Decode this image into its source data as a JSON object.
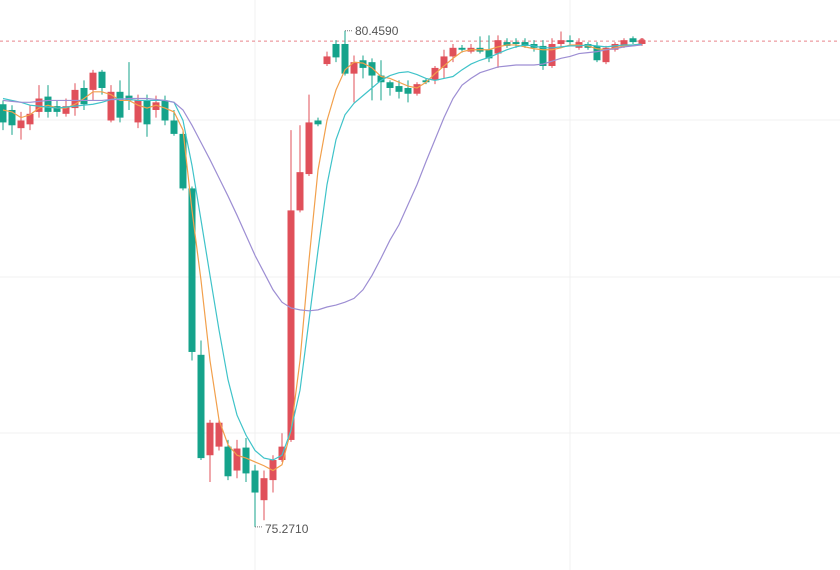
{
  "chart_data": {
    "type": "candlestick",
    "ylim": [
      74.82,
      80.78
    ],
    "up_color": "#e0505a",
    "down_color": "#15a38b",
    "open": [
      79.69,
      79.63,
      79.44,
      79.48,
      79.61,
      79.77,
      79.67,
      79.59,
      79.65,
      79.86,
      79.84,
      80.03,
      79.52,
      79.82,
      79.78,
      79.5,
      79.73,
      79.63,
      79.73,
      79.52,
      79.38,
      78.81,
      77.07,
      76.02,
      76.11,
      76.11,
      75.86,
      76.1,
      75.86,
      75.55,
      75.76,
      75.97,
      76.18,
      78.58,
      78.96,
      79.52,
      80.11,
      80.32,
      80.32,
      80.01,
      80.15,
      80.13,
      79.99,
      79.92,
      79.88,
      79.86,
      79.8,
      79.94,
      79.94,
      80.07,
      80.19,
      80.28,
      80.24,
      80.28,
      80.26,
      80.22,
      80.34,
      80.34,
      80.34,
      80.32,
      80.3,
      80.09,
      80.32,
      80.36,
      80.28,
      80.32,
      80.3,
      80.13,
      80.26,
      80.3,
      80.38,
      80.32
    ],
    "high": [
      79.73,
      79.68,
      79.61,
      79.68,
      79.89,
      79.89,
      79.73,
      79.75,
      79.91,
      79.94,
      80.05,
      80.05,
      79.89,
      79.94,
      80.13,
      79.79,
      79.79,
      79.78,
      79.78,
      79.63,
      79.42,
      78.83,
      77.22,
      76.39,
      76.39,
      76.18,
      76.18,
      76.2,
      75.92,
      75.86,
      76.02,
      76.25,
      79.42,
      79.47,
      79.79,
      79.55,
      80.24,
      80.36,
      80.459,
      80.2,
      80.2,
      80.17,
      80.15,
      79.94,
      79.94,
      79.94,
      79.92,
      79.96,
      80.09,
      80.26,
      80.32,
      80.31,
      80.32,
      80.4,
      80.41,
      80.41,
      80.38,
      80.38,
      80.38,
      80.36,
      80.36,
      80.38,
      80.45,
      80.41,
      80.38,
      80.34,
      80.34,
      80.3,
      80.34,
      80.38,
      80.4,
      80.38
    ],
    "low": [
      79.42,
      79.37,
      79.32,
      79.42,
      79.55,
      79.55,
      79.56,
      79.56,
      79.57,
      79.63,
      79.73,
      79.79,
      79.5,
      79.5,
      79.63,
      79.44,
      79.35,
      79.55,
      79.47,
      79.36,
      78.79,
      77.01,
      75.97,
      75.74,
      76.07,
      75.76,
      75.78,
      75.74,
      75.271,
      75.34,
      75.63,
      75.95,
      76.16,
      78.56,
      78.94,
      79.46,
      80.09,
      80.13,
      79.99,
      79.71,
      79.96,
      79.73,
      79.73,
      79.78,
      79.75,
      79.71,
      79.78,
      79.9,
      79.9,
      79.96,
      80.13,
      80.23,
      80.22,
      80.22,
      80.13,
      80.07,
      80.28,
      80.28,
      80.28,
      80.24,
      80.05,
      80.07,
      80.28,
      80.3,
      80.26,
      80.26,
      80.13,
      80.11,
      80.24,
      80.28,
      80.32,
      80.3
    ],
    "close": [
      79.5,
      79.47,
      79.52,
      79.59,
      79.75,
      79.61,
      79.61,
      79.67,
      79.84,
      79.69,
      80.02,
      79.86,
      79.82,
      79.55,
      79.73,
      79.73,
      79.48,
      79.71,
      79.52,
      79.38,
      78.81,
      77.1,
      75.99,
      76.36,
      76.36,
      75.8,
      76.09,
      75.83,
      75.63,
      75.78,
      75.97,
      76.11,
      78.58,
      78.98,
      79.5,
      79.48,
      80.19,
      80.18,
      80.01,
      80.13,
      80.07,
      79.99,
      79.92,
      79.86,
      79.82,
      79.8,
      79.9,
      79.92,
      80.07,
      80.19,
      80.28,
      80.26,
      80.28,
      80.24,
      80.17,
      80.36,
      80.3,
      80.32,
      80.3,
      80.28,
      80.09,
      80.32,
      80.36,
      80.34,
      80.34,
      80.28,
      80.15,
      80.28,
      80.32,
      80.36,
      80.34,
      80.36
    ],
    "lines": [
      {
        "color": "#f2a04c",
        "values": [
          79.63,
          79.61,
          79.55,
          79.58,
          79.65,
          79.68,
          79.65,
          79.65,
          79.69,
          79.75,
          79.82,
          79.82,
          79.79,
          79.73,
          79.73,
          79.68,
          79.65,
          79.68,
          79.65,
          79.61,
          79.42,
          78.58,
          77.85,
          77.01,
          76.39,
          76.13,
          76.02,
          75.99,
          75.95,
          75.91,
          75.86,
          75.92,
          76.28,
          77.01,
          78.06,
          79.0,
          79.52,
          79.84,
          80.05,
          80.13,
          80.12,
          80.07,
          79.98,
          79.96,
          79.92,
          79.88,
          79.86,
          79.92,
          80.01,
          80.09,
          80.17,
          80.24,
          80.26,
          80.26,
          80.26,
          80.29,
          80.31,
          80.31,
          80.29,
          80.27,
          80.26,
          80.26,
          80.28,
          80.31,
          80.31,
          80.3,
          80.27,
          80.26,
          80.28,
          80.3,
          80.31,
          80.32
        ]
      },
      {
        "color": "#3fc3c9",
        "values": [
          79.75,
          79.73,
          79.71,
          79.68,
          79.67,
          79.66,
          79.65,
          79.66,
          79.67,
          79.68,
          79.69,
          79.71,
          79.74,
          79.75,
          79.74,
          79.73,
          79.73,
          79.73,
          79.73,
          79.71,
          79.52,
          79.05,
          78.48,
          77.9,
          77.33,
          76.81,
          76.44,
          76.23,
          76.07,
          75.99,
          75.97,
          76.02,
          76.28,
          76.7,
          77.43,
          78.16,
          78.85,
          79.32,
          79.58,
          79.7,
          79.78,
          79.86,
          79.94,
          79.99,
          80.02,
          80.03,
          80.0,
          79.96,
          79.94,
          79.96,
          79.98,
          80.05,
          80.11,
          80.15,
          80.18,
          80.22,
          80.26,
          80.29,
          80.31,
          80.3,
          80.28,
          80.28,
          80.29,
          80.3,
          80.3,
          80.31,
          80.3,
          80.29,
          80.3,
          80.31,
          80.31,
          80.32
        ]
      },
      {
        "color": "#9d8ed3",
        "values": [
          79.73,
          79.72,
          79.71,
          79.71,
          79.72,
          79.73,
          79.73,
          79.73,
          79.73,
          79.73,
          79.73,
          79.73,
          79.74,
          79.74,
          79.75,
          79.75,
          79.75,
          79.74,
          79.73,
          79.71,
          79.63,
          79.47,
          79.29,
          79.11,
          78.92,
          78.73,
          78.53,
          78.32,
          78.11,
          77.93,
          77.75,
          77.62,
          77.56,
          77.54,
          77.53,
          77.54,
          77.57,
          77.59,
          77.62,
          77.66,
          77.75,
          77.9,
          78.08,
          78.27,
          78.43,
          78.64,
          78.85,
          79.09,
          79.32,
          79.55,
          79.75,
          79.89,
          79.96,
          80.02,
          80.05,
          80.08,
          80.09,
          80.1,
          80.1,
          80.1,
          80.11,
          80.14,
          80.17,
          80.19,
          80.22,
          80.23,
          80.24,
          80.26,
          80.27,
          80.29,
          80.3,
          80.31
        ]
      }
    ],
    "last_price": 80.35,
    "last_price_color": "#e0505a",
    "annotations": [
      {
        "label": "80.4590",
        "value": 80.459
      },
      {
        "label": "75.2710",
        "value": 75.271
      }
    ]
  }
}
